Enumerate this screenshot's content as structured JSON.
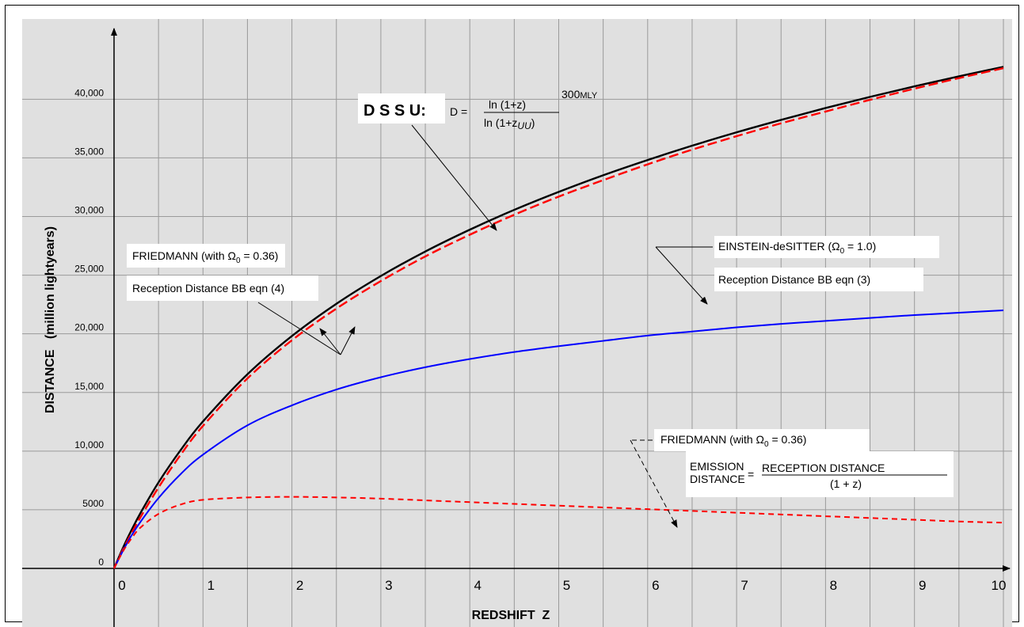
{
  "chart_data": {
    "type": "line",
    "xlabel": "REDSHIFT  Z",
    "ylabel": "DISTANCE   (million lightyears)",
    "xlim": [
      0,
      10
    ],
    "ylim": [
      0,
      43000
    ],
    "grid": true,
    "x_ticks": [
      0,
      1,
      2,
      3,
      4,
      5,
      6,
      7,
      8,
      9,
      10
    ],
    "x_tick_labels": [
      "0",
      "1",
      "2",
      "3",
      "4",
      "5",
      "6",
      "7",
      "8",
      "9",
      "10"
    ],
    "y_ticks": [
      0,
      5000,
      10000,
      15000,
      20000,
      25000,
      30000,
      35000,
      40000
    ],
    "y_tick_labels": [
      "0",
      "5000",
      "10,000",
      "15,000",
      "20,000",
      "25,000",
      "30,000",
      "35,000",
      "40,000"
    ],
    "x": [
      0,
      0.1,
      0.2,
      0.3,
      0.5,
      0.75,
      1,
      1.5,
      2,
      2.5,
      3,
      3.5,
      4,
      4.5,
      5,
      5.5,
      6,
      6.5,
      7,
      7.5,
      8,
      8.5,
      9,
      9.5,
      10
    ],
    "series": [
      {
        "color": "#000000",
        "style": "solid",
        "values": [
          0,
          1750,
          3320,
          4760,
          7330,
          10100,
          12530,
          16550,
          19810,
          22560,
          24930,
          27020,
          28880,
          30570,
          32100,
          33520,
          34820,
          36040,
          37180,
          38240,
          39250,
          40200,
          41100,
          41950,
          42760
        ]
      },
      {
        "color": "#ff0000",
        "style": "dashed",
        "values": [
          0,
          1600,
          3050,
          4400,
          6900,
          9700,
          12150,
          16200,
          19450,
          22150,
          24500,
          26600,
          28450,
          30150,
          31700,
          33100,
          34450,
          35700,
          36850,
          37950,
          38950,
          39950,
          40900,
          41800,
          42650
        ]
      },
      {
        "color": "#0000ff",
        "style": "solid",
        "values": [
          0,
          1500,
          2850,
          4000,
          6000,
          8050,
          9700,
          12200,
          13900,
          15250,
          16300,
          17150,
          17850,
          18450,
          18950,
          19400,
          19850,
          20200,
          20550,
          20850,
          21100,
          21350,
          21600,
          21800,
          22000
        ]
      },
      {
        "color": "#ff0000",
        "style": "dotted-dash",
        "values": [
          0,
          1450,
          2600,
          3500,
          4650,
          5450,
          5850,
          6050,
          6100,
          6050,
          5950,
          5800,
          5650,
          5500,
          5350,
          5200,
          5050,
          4900,
          4750,
          4600,
          4450,
          4300,
          4150,
          4000,
          3900
        ]
      }
    ],
    "annotations": {
      "dssu_label": "D S S U:",
      "dssu_eq_d": "D =",
      "dssu_num": "ln (1+z)",
      "dssu_den": "ln (1+z",
      "dssu_den_sub": "UU",
      "dssu_den_close": ")",
      "dssu_factor": "300",
      "dssu_factor_unit": "MLY",
      "friedmann_1_title": "FRIEDMANN  (with Ω",
      "friedmann_1_sub": "0",
      "friedmann_1_val": " = 0.36)",
      "friedmann_1_desc": "Reception Distance BB eqn (4)",
      "eds_title": "EINSTEIN-deSITTER (Ω",
      "eds_sub": "0",
      "eds_val": " = 1.0)",
      "eds_desc": "Reception Distance BB eqn (3)",
      "friedmann_2_title": "FRIEDMANN  (with Ω",
      "friedmann_2_sub": "0",
      "friedmann_2_val": " = 0.36)",
      "emission_line1": "EMISSION",
      "emission_line2": "DISTANCE",
      "emission_eq": "=",
      "emission_num": "RECEPTION DISTANCE",
      "emission_den": "(1 + z)"
    },
    "colors": {
      "plot_bg": "#e0e0e0",
      "grid": "#9a9a9a"
    }
  }
}
